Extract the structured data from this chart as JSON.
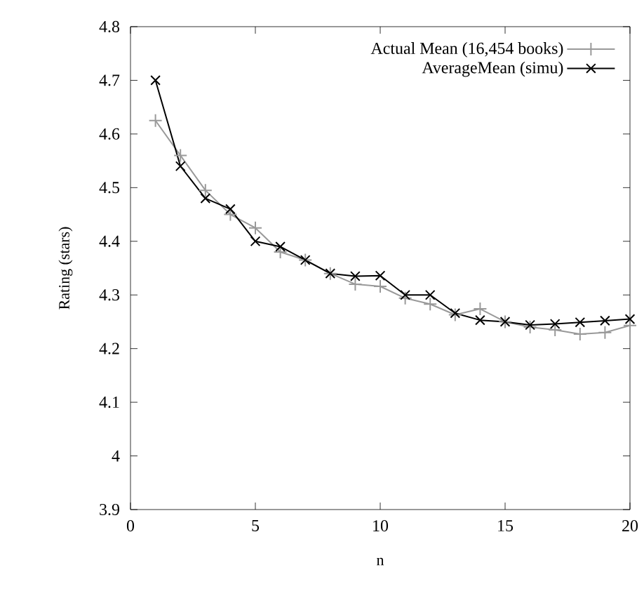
{
  "chart_data": {
    "type": "line",
    "xlabel": "n",
    "ylabel": "Rating (stars)",
    "x": [
      1,
      2,
      3,
      4,
      5,
      6,
      7,
      8,
      9,
      10,
      11,
      12,
      13,
      14,
      15,
      16,
      17,
      18,
      19,
      20
    ],
    "series": [
      {
        "name": "Actual Mean (16,454 books)",
        "color": "#999999",
        "marker": "plus",
        "values": [
          4.625,
          4.56,
          4.495,
          4.45,
          4.425,
          4.38,
          4.365,
          4.34,
          4.32,
          4.316,
          4.294,
          4.283,
          4.263,
          4.274,
          4.25,
          4.24,
          4.235,
          4.227,
          4.23,
          4.243
        ]
      },
      {
        "name": "AverageMean (simu)",
        "color": "#000000",
        "marker": "cross",
        "values": [
          4.7,
          4.54,
          4.48,
          4.46,
          4.4,
          4.39,
          4.365,
          4.34,
          4.335,
          4.336,
          4.3,
          4.3,
          4.266,
          4.253,
          4.25,
          4.244,
          4.246,
          4.249,
          4.252,
          4.255
        ]
      }
    ],
    "xlim": [
      0,
      20
    ],
    "xticks": [
      0,
      5,
      10,
      15,
      20
    ],
    "ylim": [
      3.9,
      4.8
    ],
    "yticks": [
      3.9,
      4,
      4.1,
      4.2,
      4.3,
      4.4,
      4.5,
      4.6,
      4.7,
      4.8
    ],
    "legend": "top right",
    "grid": false,
    "line_style": "solid"
  }
}
